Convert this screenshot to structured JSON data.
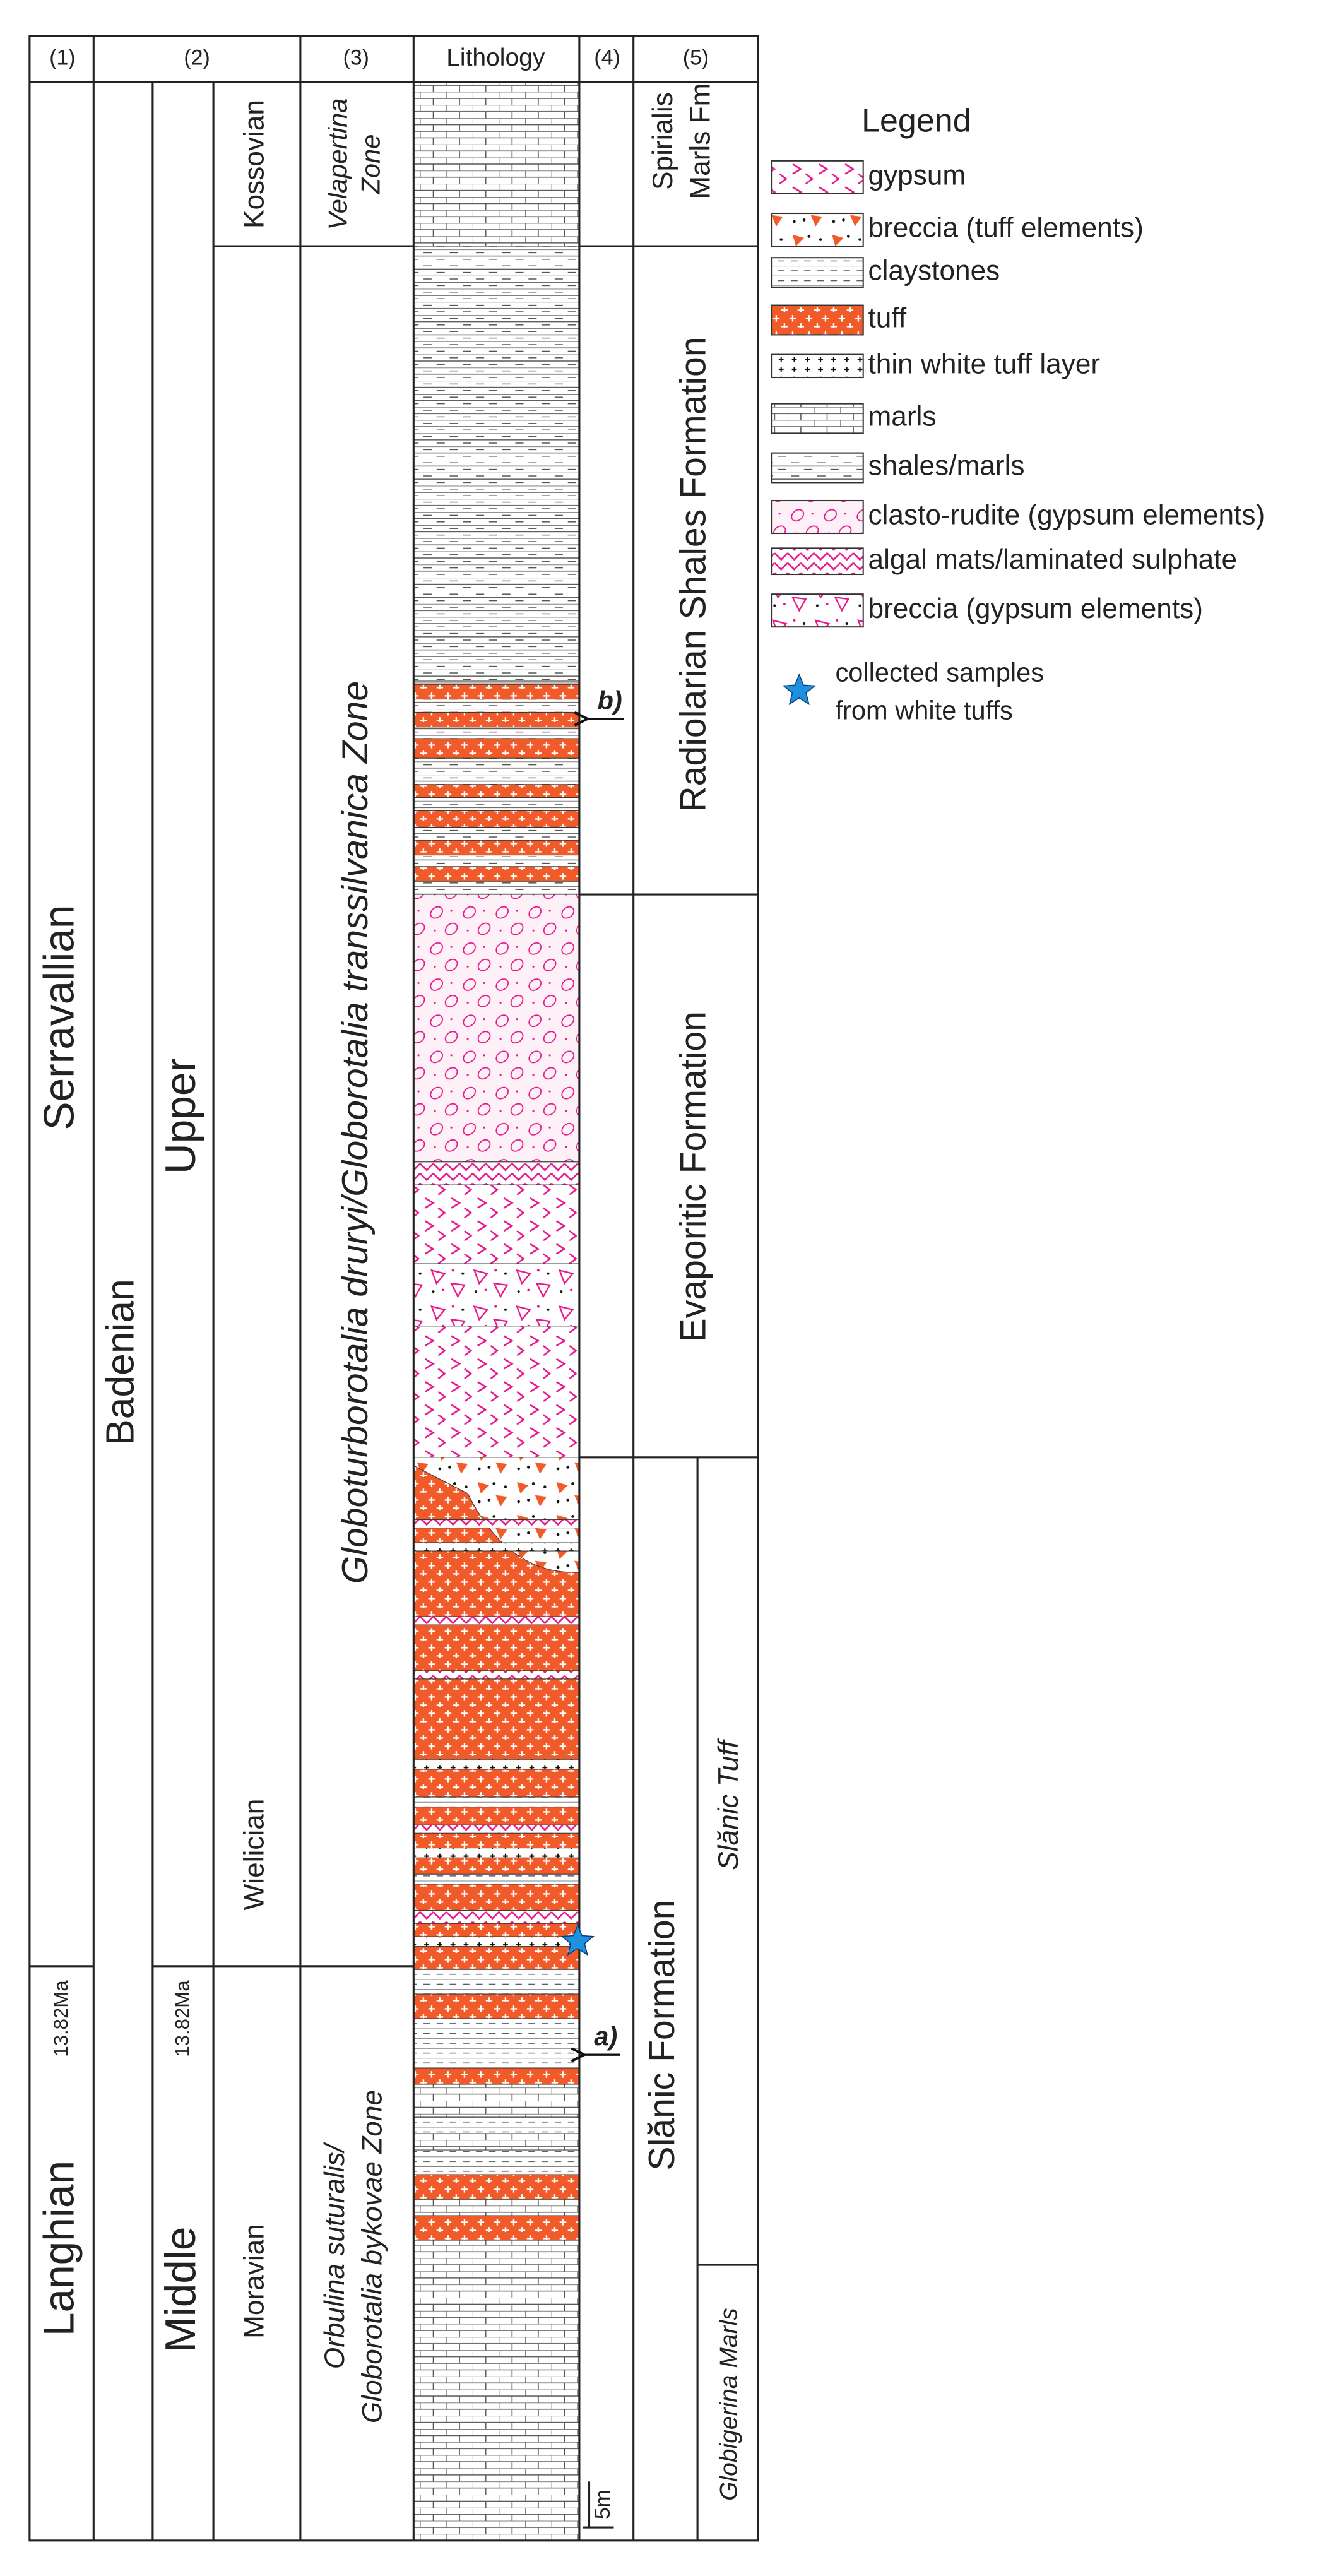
{
  "columns": [
    "(1)",
    "(2)",
    "(3)",
    "Lithology",
    "(4)",
    "(5)"
  ],
  "chronostratigraphy": {
    "stages": [
      "Serravallian",
      "Langhian"
    ],
    "regional_stage": "Badenian",
    "substages": [
      "Upper",
      "Middle"
    ],
    "regional_substages": [
      "Kossovian",
      "Wielician",
      "Moravian"
    ],
    "age_labels": [
      "13.82Ma",
      "13.82Ma"
    ]
  },
  "biozones": [
    {
      "lines": [
        "Velapertina",
        "Zone"
      ]
    },
    {
      "lines": [
        "Globoturborotalia druryi/Globorotalia transsilvanica  Zone"
      ]
    },
    {
      "lines": [
        "Orbulina suturalis/",
        "Globorotalia bykovae Zone"
      ]
    }
  ],
  "samples": [
    "b)",
    "a)"
  ],
  "formations": [
    {
      "lines": [
        "Spirialis",
        "Marls Fm"
      ]
    },
    {
      "lines": [
        "Radiolarian Shales Formation"
      ]
    },
    {
      "lines": [
        "Evaporitic Formation"
      ]
    },
    {
      "lines": [
        "Slănic Formation"
      ]
    }
  ],
  "members": [
    "Slănic Tuff",
    "Globigerina Marls"
  ],
  "scale": "5m",
  "legend": {
    "title": "Legend",
    "items": [
      "gypsum",
      "breccia (tuff elements)",
      "claystones",
      "tuff",
      "thin white tuff layer",
      "marls",
      "shales/marls",
      "clasto-rudite (gypsum elements)",
      "algal mats/laminated sulphate",
      "breccia (gypsum elements)"
    ],
    "sample_note": [
      "collected samples",
      "from white tuffs"
    ]
  }
}
